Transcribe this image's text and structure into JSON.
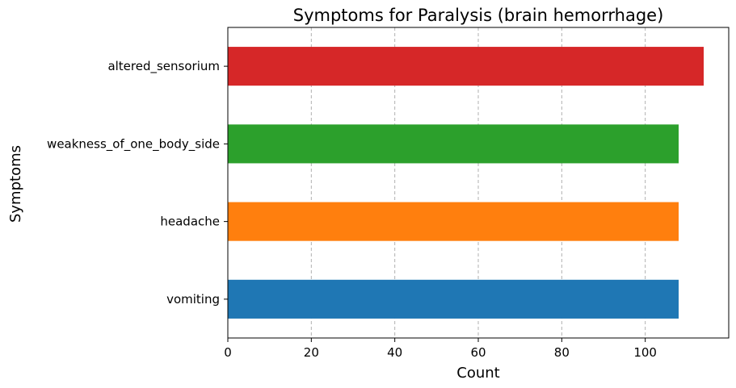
{
  "chart_data": {
    "type": "bar",
    "orientation": "horizontal",
    "title": "Symptoms for Paralysis (brain hemorrhage)",
    "xlabel": "Count",
    "ylabel": "Symptoms",
    "categories": [
      "vomiting",
      "headache",
      "weakness_of_one_body_side",
      "altered_sensorium"
    ],
    "values": [
      108,
      108,
      108,
      114
    ],
    "colors": [
      "#1f77b4",
      "#ff7f0e",
      "#2ca02c",
      "#d62728"
    ],
    "xlim": [
      0,
      120
    ],
    "xticks": [
      0,
      20,
      40,
      60,
      80,
      100
    ],
    "grid": "x-dashed"
  }
}
